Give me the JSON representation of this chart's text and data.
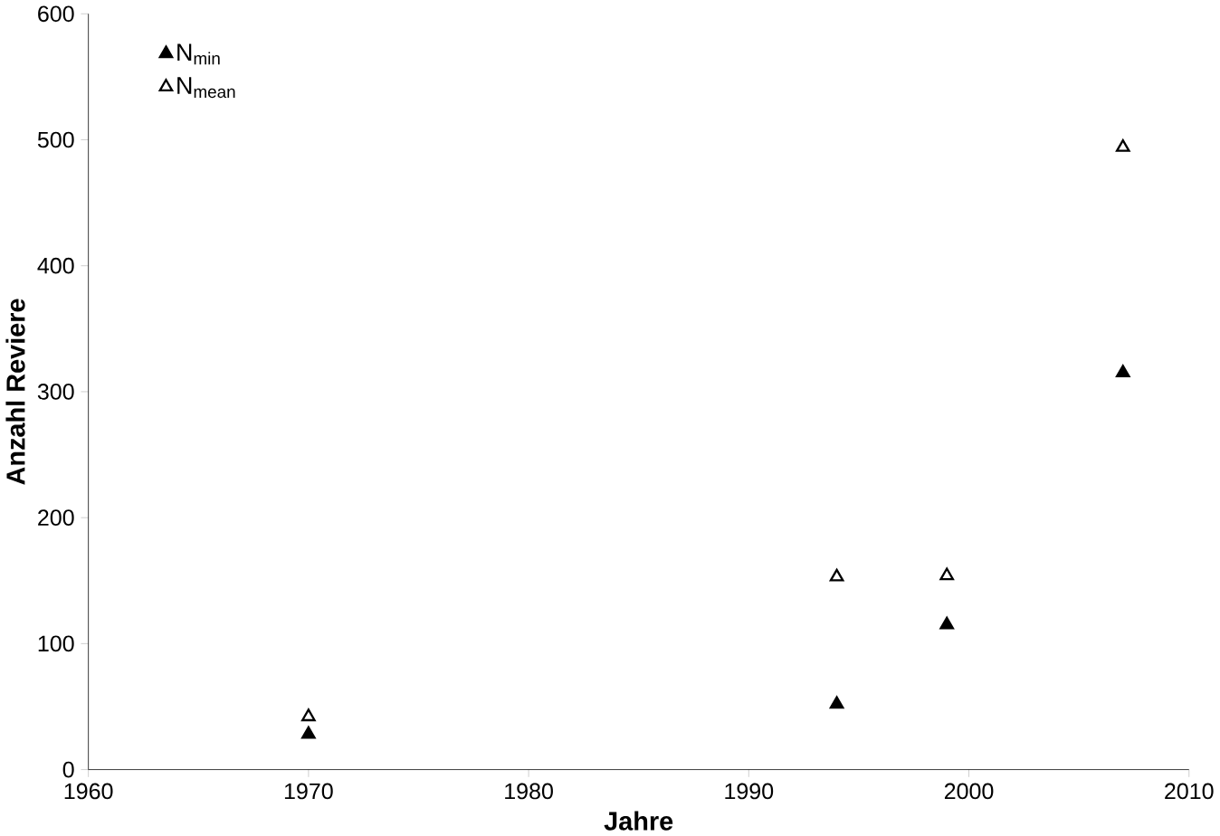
{
  "chart_data": {
    "type": "scatter",
    "xlabel": "Jahre",
    "ylabel": "Anzahl Reviere",
    "marker": "triangle",
    "legend": "top left",
    "grid": false,
    "x": [
      1970,
      1994,
      1999,
      2007
    ],
    "series": [
      {
        "name": "N$_{min}$",
        "color": "#000000",
        "values": [
          28,
          52,
          115,
          315
        ]
      },
      {
        "name": "N$_{mean}$",
        "color": "#000000",
        "values": [
          42,
          153,
          154,
          494
        ]
      }
    ],
    "xlim": [
      1960,
      2010
    ],
    "xticks": [
      1960,
      1970,
      1980,
      1990,
      2000,
      2010
    ],
    "ylim": [
      0,
      600
    ],
    "yticks": [
      0,
      100,
      200,
      300,
      400,
      500,
      600
    ]
  }
}
